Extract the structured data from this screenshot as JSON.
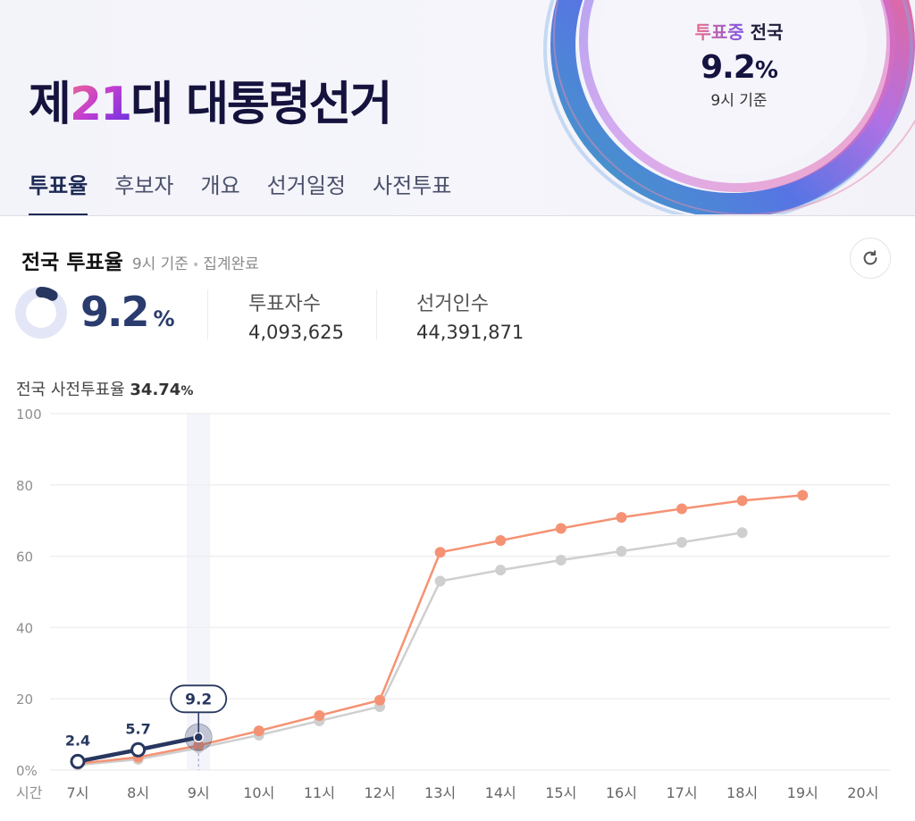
{
  "hero": {
    "title_prefix": "제",
    "title_number": "21",
    "title_suffix": "대 대통령선거",
    "status_label": "투표중",
    "status_region": "전국",
    "rate_value": "9.2",
    "rate_unit": "%",
    "base_time": "9시 기준"
  },
  "tabs": [
    {
      "label": "투표율",
      "active": true
    },
    {
      "label": "후보자",
      "active": false
    },
    {
      "label": "개요",
      "active": false
    },
    {
      "label": "선거일정",
      "active": false
    },
    {
      "label": "사전투표",
      "active": false
    }
  ],
  "summary": {
    "title": "전국 투표율",
    "base_time": "9시 기준",
    "status": "집계완료",
    "rate_value": "9.2",
    "rate_unit": "%",
    "voters_label": "투표자수",
    "voters_value": "4,093,625",
    "electorate_label": "선거인수",
    "electorate_value": "44,391,871",
    "refresh_icon": "refresh-icon"
  },
  "early_voting": {
    "label": "전국 사전투표율",
    "value": "34.74",
    "unit": "%"
  },
  "colors": {
    "current": "#27375f",
    "previous_orange": "#f59274",
    "previous_grey": "#cfcfcf",
    "grid": "#efefef",
    "axis_text": "#8f8f8f"
  },
  "chart_data": {
    "type": "line",
    "title": "전국 투표율",
    "xlabel": "시간",
    "ylabel": "",
    "ylim": [
      0,
      100
    ],
    "yticks": [
      "0%",
      "20",
      "40",
      "60",
      "80",
      "100"
    ],
    "grid": true,
    "categories": [
      "7시",
      "8시",
      "9시",
      "10시",
      "11시",
      "12시",
      "13시",
      "14시",
      "15시",
      "16시",
      "17시",
      "18시",
      "19시",
      "20시"
    ],
    "highlight_category": "9시",
    "highlight_label": "9.2",
    "series": [
      {
        "name": "current",
        "color": "#27375f",
        "values": [
          2.4,
          5.7,
          9.2,
          null,
          null,
          null,
          null,
          null,
          null,
          null,
          null,
          null,
          null,
          null
        ],
        "labels": [
          "2.4",
          "5.7",
          "9.2"
        ]
      },
      {
        "name": "previous-orange",
        "color": "#f59274",
        "values": [
          1.8,
          3.6,
          6.9,
          11.0,
          15.3,
          19.6,
          61.1,
          64.4,
          67.8,
          70.9,
          73.3,
          75.6,
          77.1,
          null
        ]
      },
      {
        "name": "previous-grey",
        "color": "#cfcfcf",
        "values": [
          1.4,
          3.0,
          6.2,
          9.8,
          13.8,
          17.8,
          53.0,
          56.1,
          58.9,
          61.4,
          63.9,
          66.6,
          null,
          null
        ]
      }
    ]
  }
}
